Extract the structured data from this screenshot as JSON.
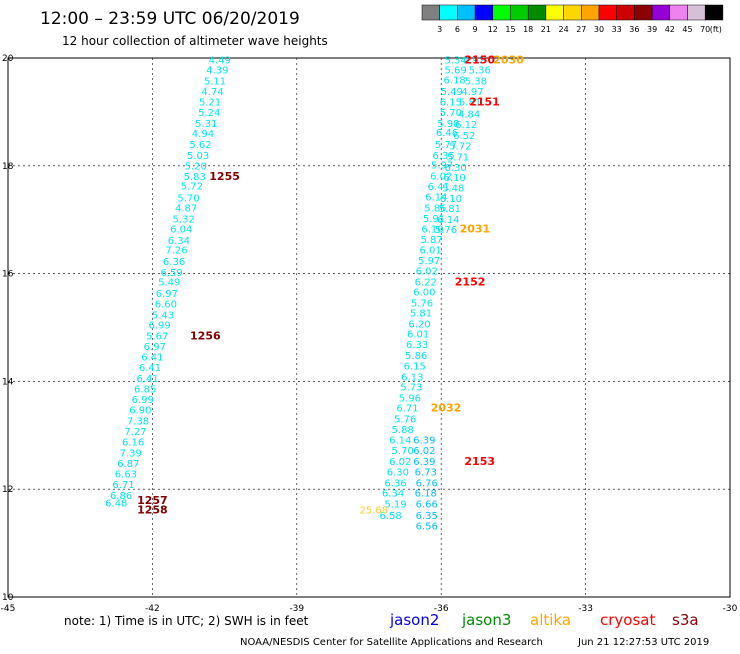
{
  "header": {
    "title": "12:00 – 23:59 UTC 06/20/2019",
    "subtitle": "12 hour collection of altimeter wave heights"
  },
  "colorbar": {
    "colors": [
      "#808080",
      "#00ffff",
      "#00bfff",
      "#0000ff",
      "#00ff00",
      "#00cd00",
      "#008b00",
      "#ffff00",
      "#ffd700",
      "#ffa500",
      "#ff0000",
      "#cd0000",
      "#8b0000",
      "#9400d3",
      "#ee82ee",
      "#d8bfd8",
      "#000000"
    ],
    "labels": [
      "3",
      "6",
      "9",
      "12",
      "15",
      "18",
      "21",
      "24",
      "27",
      "30",
      "33",
      "36",
      "39",
      "42",
      "45",
      "70"
    ],
    "unit": "(ft)"
  },
  "chart_data": {
    "type": "scatter",
    "xlim": [
      -45,
      -30
    ],
    "ylim": [
      10,
      20
    ],
    "x_ticks": [
      "-45",
      "-42",
      "-39",
      "-36",
      "-33",
      "-30"
    ],
    "y_ticks": [
      "10",
      "12",
      "14",
      "16",
      "18",
      "20"
    ],
    "grid": true,
    "tracks": [
      {
        "satellite": "jason3-track-a",
        "color": "#00e5ee",
        "points": [
          {
            "x": -40.6,
            "y": 19.9,
            "v": "4.49"
          },
          {
            "x": -40.65,
            "y": 19.71,
            "v": "4.39"
          },
          {
            "x": -40.7,
            "y": 19.51,
            "v": "5.11"
          },
          {
            "x": -40.75,
            "y": 19.31,
            "v": "4.74"
          },
          {
            "x": -40.8,
            "y": 19.12,
            "v": "5.21"
          },
          {
            "x": -40.82,
            "y": 18.92,
            "v": "5.24"
          },
          {
            "x": -40.88,
            "y": 18.72,
            "v": "5.31"
          },
          {
            "x": -40.95,
            "y": 18.53,
            "v": "4.94"
          },
          {
            "x": -41.0,
            "y": 18.33,
            "v": "5.62"
          },
          {
            "x": -41.05,
            "y": 18.13,
            "v": "5.03"
          },
          {
            "x": -41.1,
            "y": 17.93,
            "v": "5.20"
          },
          {
            "x": -41.12,
            "y": 17.74,
            "v": "5.83"
          },
          {
            "x": -41.18,
            "y": 17.56,
            "v": "5.72"
          },
          {
            "x": -41.25,
            "y": 17.34,
            "v": "5.70"
          },
          {
            "x": -41.3,
            "y": 17.15,
            "v": "4.87"
          },
          {
            "x": -41.35,
            "y": 16.95,
            "v": "5.32"
          },
          {
            "x": -41.4,
            "y": 16.76,
            "v": "6.04"
          },
          {
            "x": -41.45,
            "y": 16.55,
            "v": "6.34"
          },
          {
            "x": -41.5,
            "y": 16.37,
            "v": "7.26"
          },
          {
            "x": -41.55,
            "y": 16.16,
            "v": "6.36"
          },
          {
            "x": -41.6,
            "y": 15.96,
            "v": "6.59"
          },
          {
            "x": -41.65,
            "y": 15.78,
            "v": "5.49"
          },
          {
            "x": -41.7,
            "y": 15.57,
            "v": "6.97"
          },
          {
            "x": -41.72,
            "y": 15.37,
            "v": "6.60"
          },
          {
            "x": -41.78,
            "y": 15.17,
            "v": "5.43"
          },
          {
            "x": -41.85,
            "y": 14.98,
            "v": "6.99"
          },
          {
            "x": -41.9,
            "y": 14.78,
            "v": "5.67"
          },
          {
            "x": -41.95,
            "y": 14.58,
            "v": "6.97"
          },
          {
            "x": -42.0,
            "y": 14.39,
            "v": "6.41"
          },
          {
            "x": -42.05,
            "y": 14.19,
            "v": "6.41"
          },
          {
            "x": -42.1,
            "y": 13.99,
            "v": "6.41"
          },
          {
            "x": -42.15,
            "y": 13.79,
            "v": "6.85"
          },
          {
            "x": -42.2,
            "y": 13.6,
            "v": "6.99"
          },
          {
            "x": -42.25,
            "y": 13.4,
            "v": "6.90"
          },
          {
            "x": -42.3,
            "y": 13.2,
            "v": "7.38"
          },
          {
            "x": -42.35,
            "y": 13.01,
            "v": "7.27"
          },
          {
            "x": -42.4,
            "y": 12.81,
            "v": "6.16"
          },
          {
            "x": -42.45,
            "y": 12.61,
            "v": "7.39"
          },
          {
            "x": -42.5,
            "y": 12.41,
            "v": "6.87"
          },
          {
            "x": -42.55,
            "y": 12.22,
            "v": "6.63"
          },
          {
            "x": -42.6,
            "y": 12.02,
            "v": "6.71"
          },
          {
            "x": -42.65,
            "y": 11.82,
            "v": "6.86"
          },
          {
            "x": -42.75,
            "y": 11.68,
            "v": "6.48"
          }
        ]
      },
      {
        "satellite": "jason3-track-b",
        "color": "#00e5ee",
        "points": [
          {
            "x": -35.7,
            "y": 19.9,
            "v": "5.34"
          },
          {
            "x": -35.32,
            "y": 19.9,
            "v": "4.92"
          },
          {
            "x": -35.7,
            "y": 19.71,
            "v": "5.69"
          },
          {
            "x": -35.2,
            "y": 19.71,
            "v": "5.36"
          },
          {
            "x": -35.72,
            "y": 19.53,
            "v": "6.18"
          },
          {
            "x": -35.28,
            "y": 19.51,
            "v": "5.38"
          },
          {
            "x": -35.78,
            "y": 19.31,
            "v": "5.49"
          },
          {
            "x": -35.35,
            "y": 19.31,
            "v": "4.97"
          },
          {
            "x": -35.8,
            "y": 19.12,
            "v": "6.15"
          },
          {
            "x": -35.4,
            "y": 19.12,
            "v": "5.81"
          },
          {
            "x": -35.8,
            "y": 18.92,
            "v": "5.70"
          },
          {
            "x": -35.42,
            "y": 18.9,
            "v": "4.84"
          },
          {
            "x": -35.85,
            "y": 18.72,
            "v": "5.98"
          },
          {
            "x": -35.48,
            "y": 18.7,
            "v": "6.12"
          },
          {
            "x": -35.88,
            "y": 18.55,
            "v": "6.46"
          },
          {
            "x": -35.52,
            "y": 18.5,
            "v": "6.52"
          },
          {
            "x": -35.9,
            "y": 18.33,
            "v": "5.77"
          },
          {
            "x": -35.6,
            "y": 18.3,
            "v": "5.72"
          },
          {
            "x": -35.95,
            "y": 18.13,
            "v": "6.35"
          },
          {
            "x": -35.65,
            "y": 18.1,
            "v": "5.71"
          },
          {
            "x": -35.98,
            "y": 17.95,
            "v": "5.97"
          },
          {
            "x": -35.7,
            "y": 17.9,
            "v": "6.30"
          },
          {
            "x": -36.0,
            "y": 17.75,
            "v": "6.02"
          },
          {
            "x": -35.72,
            "y": 17.72,
            "v": "6.10"
          },
          {
            "x": -36.05,
            "y": 17.55,
            "v": "6.41"
          },
          {
            "x": -35.75,
            "y": 17.52,
            "v": "5.48"
          },
          {
            "x": -36.1,
            "y": 17.36,
            "v": "6.14"
          },
          {
            "x": -35.8,
            "y": 17.33,
            "v": "6.10"
          },
          {
            "x": -36.12,
            "y": 17.15,
            "v": "5.85"
          },
          {
            "x": -35.82,
            "y": 17.14,
            "v": "5.81"
          },
          {
            "x": -36.15,
            "y": 16.96,
            "v": "5.91"
          },
          {
            "x": -35.85,
            "y": 16.94,
            "v": "6.14"
          },
          {
            "x": -36.18,
            "y": 16.76,
            "v": "6.10"
          },
          {
            "x": -35.9,
            "y": 16.75,
            "v": "5.76"
          },
          {
            "x": -36.2,
            "y": 16.57,
            "v": "5.87"
          },
          {
            "x": -36.22,
            "y": 16.37,
            "v": "6.01"
          },
          {
            "x": -36.25,
            "y": 16.18,
            "v": "5.97"
          },
          {
            "x": -36.3,
            "y": 15.98,
            "v": "6.02"
          },
          {
            "x": -36.32,
            "y": 15.78,
            "v": "6.22"
          },
          {
            "x": -36.35,
            "y": 15.59,
            "v": "6.00"
          },
          {
            "x": -36.4,
            "y": 15.39,
            "v": "5.76"
          },
          {
            "x": -36.42,
            "y": 15.2,
            "v": "5.81"
          },
          {
            "x": -36.45,
            "y": 15.0,
            "v": "6.20"
          },
          {
            "x": -36.48,
            "y": 14.81,
            "v": "6.01"
          },
          {
            "x": -36.5,
            "y": 14.62,
            "v": "6.33"
          },
          {
            "x": -36.52,
            "y": 14.42,
            "v": "5.86"
          },
          {
            "x": -36.55,
            "y": 14.22,
            "v": "6.15"
          },
          {
            "x": -36.6,
            "y": 14.02,
            "v": "6.13"
          },
          {
            "x": -36.62,
            "y": 13.83,
            "v": "5.73"
          },
          {
            "x": -36.65,
            "y": 13.63,
            "v": "5.96"
          },
          {
            "x": -36.7,
            "y": 13.44,
            "v": "6.71"
          },
          {
            "x": -36.75,
            "y": 13.24,
            "v": "5.76"
          },
          {
            "x": -36.8,
            "y": 13.04,
            "v": "5.88"
          },
          {
            "x": -36.85,
            "y": 12.85,
            "v": "6.14"
          },
          {
            "x": -36.8,
            "y": 12.65,
            "v": "5.70"
          },
          {
            "x": -36.85,
            "y": 12.45,
            "v": "6.02"
          },
          {
            "x": -36.9,
            "y": 12.25,
            "v": "6.30"
          },
          {
            "x": -36.95,
            "y": 12.05,
            "v": "6.36"
          },
          {
            "x": -37.0,
            "y": 11.86,
            "v": "6.34"
          },
          {
            "x": -36.95,
            "y": 11.66,
            "v": "5.19"
          },
          {
            "x": -37.05,
            "y": 11.45,
            "v": "6.58"
          }
        ]
      },
      {
        "satellite": "jason3-track-c",
        "color": "#00bfff",
        "points": [
          {
            "x": -36.35,
            "y": 12.85,
            "v": "6.39"
          },
          {
            "x": -36.35,
            "y": 12.65,
            "v": "6.02"
          },
          {
            "x": -36.35,
            "y": 12.45,
            "v": "6.39"
          },
          {
            "x": -36.32,
            "y": 12.25,
            "v": "6.73"
          },
          {
            "x": -36.3,
            "y": 12.05,
            "v": "6.76"
          },
          {
            "x": -36.32,
            "y": 11.86,
            "v": "6.18"
          },
          {
            "x": -36.3,
            "y": 11.66,
            "v": "6.66"
          },
          {
            "x": -36.3,
            "y": 11.45,
            "v": "6.35"
          },
          {
            "x": -36.3,
            "y": 11.25,
            "v": "6.56"
          }
        ]
      },
      {
        "satellite": "altika-point",
        "color": "#ffcc33",
        "points": [
          {
            "x": -37.4,
            "y": 11.55,
            "v": "25.68"
          }
        ]
      }
    ],
    "time_labels": [
      {
        "x": -40.5,
        "y": 17.74,
        "text": "1255",
        "color": "#800000"
      },
      {
        "x": -40.9,
        "y": 14.78,
        "text": "1256",
        "color": "#800000"
      },
      {
        "x": -42.0,
        "y": 11.73,
        "text": "1257",
        "color": "#800000"
      },
      {
        "x": -42.0,
        "y": 11.55,
        "text": "1258",
        "color": "#800000"
      },
      {
        "x": -35.2,
        "y": 19.9,
        "text": "2150",
        "color": "#ff0000"
      },
      {
        "x": -34.6,
        "y": 19.9,
        "text": "2030",
        "color": "#ffa500"
      },
      {
        "x": -35.1,
        "y": 19.12,
        "text": "2151",
        "color": "#ff0000"
      },
      {
        "x": -35.3,
        "y": 16.76,
        "text": "2031",
        "color": "#ffa500"
      },
      {
        "x": -35.4,
        "y": 15.78,
        "text": "2152",
        "color": "#ff0000"
      },
      {
        "x": -35.9,
        "y": 13.44,
        "text": "2032",
        "color": "#ffa500"
      },
      {
        "x": -35.2,
        "y": 12.45,
        "text": "2153",
        "color": "#ff0000"
      }
    ]
  },
  "footer": {
    "note": "note: 1) Time is in UTC; 2) SWH is in feet",
    "missions": [
      {
        "name": "jason2",
        "color": "#0000ee"
      },
      {
        "name": "jason3",
        "color": "#008b00"
      },
      {
        "name": "altika",
        "color": "#ffa500"
      },
      {
        "name": "cryosat",
        "color": "#ff0000"
      },
      {
        "name": "s3a",
        "color": "#8b0000"
      }
    ],
    "credit": "NOAA/NESDIS Center for Satellite Applications and Research",
    "timestamp": "Jun 21 12:27:53 UTC 2019"
  }
}
